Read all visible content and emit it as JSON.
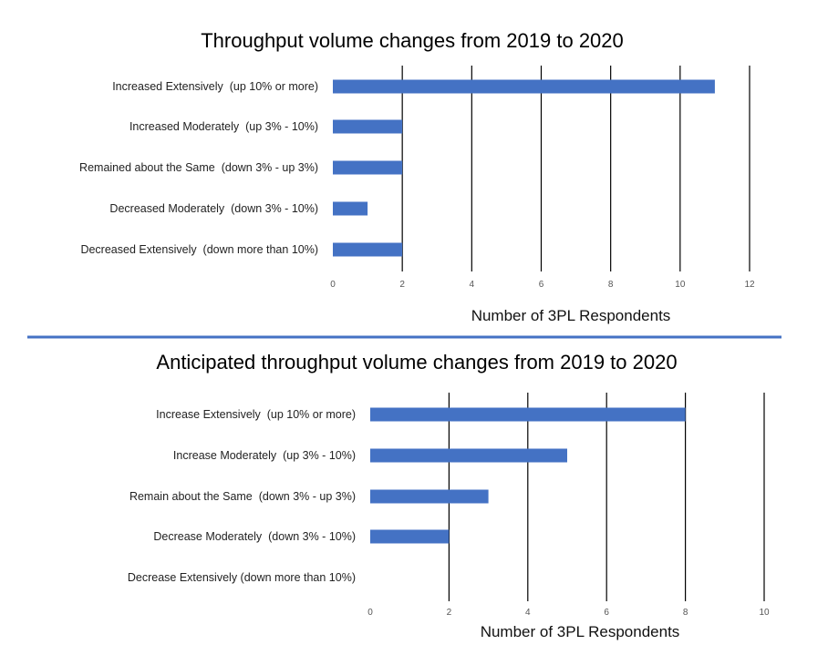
{
  "colors": {
    "bar": "#4472c4",
    "divider": "#4472c4",
    "grid": "#000000"
  },
  "chart_data": [
    {
      "type": "bar",
      "orientation": "horizontal",
      "title": "Throughput volume changes from 2019 to 2020",
      "xlabel": "Number of 3PL Respondents",
      "categories": [
        "Increased Extensively  (up 10% or more)",
        "Increased Moderately  (up 3% - 10%)",
        "Remained about the Same  (down 3% - up 3%)",
        "Decreased Moderately  (down 3% - 10%)",
        "Decreased Extensively  (down more than 10%)"
      ],
      "values": [
        11,
        2,
        2,
        1,
        2
      ],
      "xlim": [
        0,
        12
      ],
      "ticks": [
        0,
        2,
        4,
        6,
        8,
        10,
        12
      ],
      "grid": "vertical"
    },
    {
      "type": "bar",
      "orientation": "horizontal",
      "title": "Anticipated throughput volume changes from 2019 to 2020",
      "xlabel": "Number of 3PL Respondents",
      "categories": [
        "Increase Extensively  (up 10% or more)",
        "Increase Moderately  (up 3% - 10%)",
        "Remain about the Same  (down 3% - up 3%)",
        "Decrease Moderately  (down 3% - 10%)",
        "Decrease Extensively (down more than 10%)"
      ],
      "values": [
        8,
        5,
        3,
        2,
        0
      ],
      "xlim": [
        0,
        10
      ],
      "ticks": [
        0,
        2,
        4,
        6,
        8,
        10
      ],
      "grid": "vertical"
    }
  ]
}
